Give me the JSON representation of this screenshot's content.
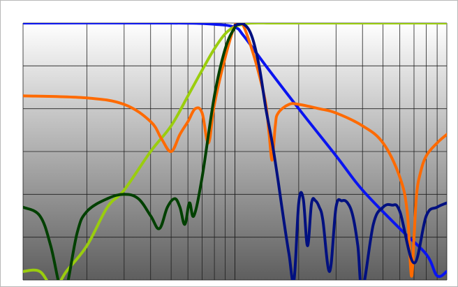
{
  "chart_data": {
    "type": "line",
    "title": "",
    "xlabel": "",
    "ylabel": "",
    "x_scale": "log",
    "grid": true,
    "legend": "none",
    "xlim": [
      1,
      100
    ],
    "ylim": [
      -60,
      0
    ],
    "background_gradient": [
      "#ffffff",
      "#5e5e5e"
    ],
    "series": [
      {
        "color": "#0a14f0",
        "x": [
          1,
          5,
          8,
          10,
          11,
          14,
          20,
          30,
          40,
          60,
          80,
          90,
          100
        ],
        "y": [
          0,
          0,
          -0.3,
          -1,
          -3,
          -10,
          -20,
          -31,
          -39,
          -48,
          -54,
          -59,
          -58
        ]
      },
      {
        "color": "#9acd0e",
        "x": [
          1,
          1.2,
          1.4,
          1.6,
          2,
          2.5,
          3,
          4,
          5,
          6,
          7,
          8,
          9,
          10,
          11,
          12,
          15,
          20,
          100
        ],
        "y": [
          -58,
          -58,
          -62,
          -58,
          -52,
          -43,
          -39,
          -30,
          -24,
          -17,
          -11,
          -6,
          -2.5,
          -0.8,
          -0.3,
          0,
          0,
          0,
          0
        ]
      },
      {
        "color": "#ff6a00",
        "x": [
          1,
          2,
          3,
          4,
          4.5,
          5,
          5.5,
          6,
          6.5,
          7,
          7.5,
          8,
          9,
          10,
          10.5,
          11,
          12,
          13,
          14,
          14.5,
          15,
          15.5,
          16,
          18,
          20,
          25,
          30,
          40,
          50,
          60,
          65,
          68,
          70,
          72,
          75,
          80,
          90,
          100
        ],
        "y": [
          -17,
          -17.5,
          -19,
          -23,
          -27,
          -30,
          -26,
          -23,
          -20,
          -21,
          -28,
          -19,
          -8,
          -0.5,
          0,
          -0.8,
          -6,
          -12,
          -19,
          -26,
          -32,
          -24,
          -21,
          -19,
          -19,
          -20,
          -21,
          -24,
          -28,
          -36,
          -44,
          -59,
          -50,
          -40,
          -35,
          -31,
          -28,
          -26
        ]
      },
      {
        "color": "#004000",
        "x": [
          1,
          1.2,
          1.35,
          1.5,
          1.6,
          1.8,
          2,
          2.5,
          3,
          3.5,
          4,
          4.4,
          4.8,
          5.2,
          5.5,
          5.8,
          6.1,
          6.4,
          7,
          8,
          9,
          10,
          10.5,
          11
        ],
        "y": [
          -43,
          -45,
          -52,
          -62,
          -62,
          -49,
          -44,
          -41,
          -40,
          -41,
          -45,
          -48,
          -43,
          -41,
          -43,
          -47,
          -42,
          -45,
          -36,
          -17,
          -6,
          -1,
          -0.3,
          -0.1
        ]
      },
      {
        "color": "#001080",
        "x": [
          10,
          11,
          12,
          13,
          14,
          15,
          16,
          17,
          18,
          19,
          20,
          21,
          22,
          23,
          24,
          25,
          26,
          28,
          30,
          32,
          34,
          36,
          38,
          40,
          45,
          50,
          55,
          60,
          70,
          80,
          90,
          100
        ],
        "y": [
          -0.5,
          -0.3,
          -3,
          -10,
          -20,
          -28,
          -37,
          -46,
          -54,
          -60,
          -42,
          -41,
          -52,
          -42,
          -41.5,
          -43,
          -46,
          -58,
          -43,
          -41.5,
          -42,
          -45,
          -52,
          -62,
          -47,
          -43,
          -42.5,
          -44,
          -56,
          -45,
          -43,
          -42
        ]
      }
    ]
  }
}
